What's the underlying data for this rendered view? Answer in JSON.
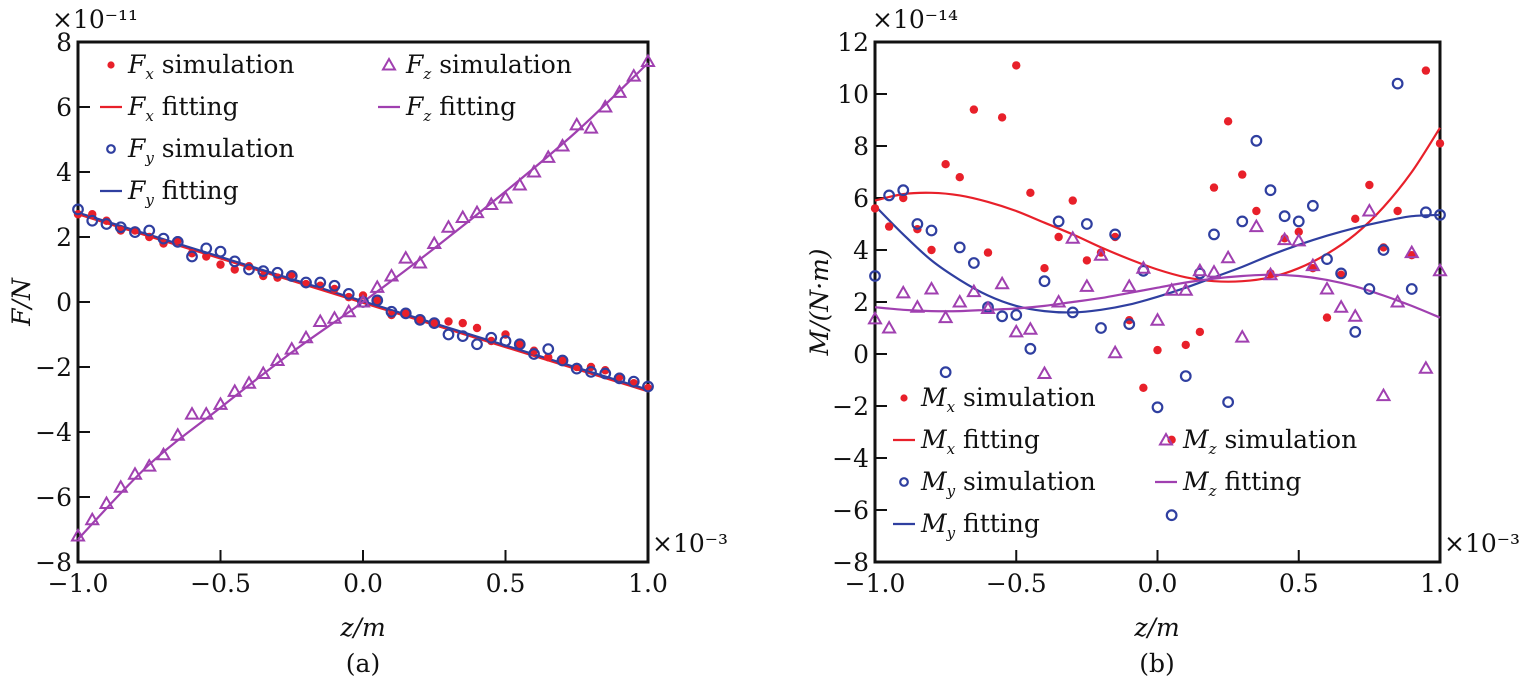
{
  "chart_data": [
    {
      "type": "scatter",
      "panel_label": "(a)",
      "title": "",
      "xlabel": "z/m",
      "ylabel": "F/N",
      "x_multiplier": "×10⁻³",
      "y_multiplier": "×10⁻¹¹",
      "xlim": [
        -1.0,
        1.0
      ],
      "ylim": [
        -8,
        8
      ],
      "x_ticks": [
        "−1.0",
        "−0.5",
        "0.0",
        "0.5",
        "1.0"
      ],
      "x_tick_values": [
        -1.0,
        -0.5,
        0.0,
        0.5,
        1.0
      ],
      "y_ticks": [
        "−8",
        "−6",
        "−4",
        "−2",
        "0",
        "2",
        "4",
        "6",
        "8"
      ],
      "y_tick_values": [
        -8,
        -6,
        -4,
        -2,
        0,
        2,
        4,
        6,
        8
      ],
      "grid": false,
      "legend_placement": "top-left",
      "legend": [
        {
          "label_main": "F",
          "label_sub": "x",
          "label_rest": " simulation",
          "kind": "dot",
          "color": "#e8202a"
        },
        {
          "label_main": "F",
          "label_sub": "x",
          "label_rest": " fitting",
          "kind": "line",
          "color": "#e8202a"
        },
        {
          "label_main": "F",
          "label_sub": "y",
          "label_rest": " simulation",
          "kind": "circle",
          "color": "#2f3fa0"
        },
        {
          "label_main": "F",
          "label_sub": "y",
          "label_rest": " fitting",
          "kind": "line",
          "color": "#2f3fa0"
        },
        {
          "label_main": "F",
          "label_sub": "z",
          "label_rest": " simulation",
          "kind": "triangle",
          "color": "#a040b0"
        },
        {
          "label_main": "F",
          "label_sub": "z",
          "label_rest": " fitting",
          "kind": "line",
          "color": "#a040b0"
        }
      ],
      "series": [
        {
          "name": "Fx simulation",
          "kind": "dot",
          "color": "#e8202a",
          "x": [
            -1.0,
            -0.95,
            -0.9,
            -0.85,
            -0.8,
            -0.75,
            -0.7,
            -0.65,
            -0.6,
            -0.55,
            -0.5,
            -0.45,
            -0.4,
            -0.35,
            -0.3,
            -0.25,
            -0.2,
            -0.15,
            -0.1,
            -0.05,
            0.0,
            0.05,
            0.1,
            0.15,
            0.2,
            0.25,
            0.3,
            0.35,
            0.4,
            0.45,
            0.5,
            0.55,
            0.6,
            0.65,
            0.7,
            0.75,
            0.8,
            0.85,
            0.9,
            0.95,
            1.0
          ],
          "y": [
            2.7,
            2.7,
            2.5,
            2.2,
            2.2,
            2.0,
            1.8,
            1.9,
            1.5,
            1.4,
            1.15,
            1.0,
            1.1,
            0.8,
            0.75,
            0.85,
            0.55,
            0.5,
            0.4,
            0.15,
            0.2,
            0.05,
            -0.4,
            -0.35,
            -0.55,
            -0.65,
            -0.6,
            -0.65,
            -0.8,
            -1.2,
            -1.0,
            -1.3,
            -1.5,
            -1.7,
            -1.8,
            -2.0,
            -2.0,
            -2.1,
            -2.3,
            -2.5,
            -2.65
          ]
        },
        {
          "name": "Fx fitting",
          "kind": "line",
          "color": "#e8202a",
          "x": [
            -1.0,
            1.0
          ],
          "y": [
            2.7,
            -2.75
          ]
        },
        {
          "name": "Fy simulation",
          "kind": "circle",
          "color": "#2f3fa0",
          "x": [
            -1.0,
            -0.95,
            -0.9,
            -0.85,
            -0.8,
            -0.75,
            -0.7,
            -0.65,
            -0.6,
            -0.55,
            -0.5,
            -0.45,
            -0.4,
            -0.35,
            -0.3,
            -0.25,
            -0.2,
            -0.15,
            -0.1,
            -0.05,
            0.0,
            0.05,
            0.1,
            0.15,
            0.2,
            0.25,
            0.3,
            0.35,
            0.4,
            0.45,
            0.5,
            0.55,
            0.6,
            0.65,
            0.7,
            0.75,
            0.8,
            0.85,
            0.9,
            0.95,
            1.0
          ],
          "y": [
            2.85,
            2.5,
            2.4,
            2.3,
            2.15,
            2.2,
            1.95,
            1.85,
            1.4,
            1.65,
            1.55,
            1.25,
            1.0,
            0.95,
            0.9,
            0.8,
            0.6,
            0.6,
            0.5,
            0.25,
            0.0,
            0.05,
            -0.3,
            -0.35,
            -0.55,
            -0.65,
            -1.0,
            -1.05,
            -1.3,
            -1.1,
            -1.2,
            -1.3,
            -1.6,
            -1.45,
            -1.8,
            -2.05,
            -2.15,
            -2.2,
            -2.35,
            -2.45,
            -2.6
          ]
        },
        {
          "name": "Fy fitting",
          "kind": "line",
          "color": "#2f3fa0",
          "x": [
            -1.0,
            1.0
          ],
          "y": [
            2.75,
            -2.7
          ]
        },
        {
          "name": "Fz simulation",
          "kind": "triangle",
          "color": "#a040b0",
          "x": [
            -1.0,
            -0.95,
            -0.9,
            -0.85,
            -0.8,
            -0.75,
            -0.7,
            -0.65,
            -0.6,
            -0.55,
            -0.5,
            -0.45,
            -0.4,
            -0.35,
            -0.3,
            -0.25,
            -0.2,
            -0.15,
            -0.1,
            -0.05,
            0.0,
            0.05,
            0.1,
            0.15,
            0.2,
            0.25,
            0.3,
            0.35,
            0.4,
            0.45,
            0.5,
            0.55,
            0.6,
            0.65,
            0.7,
            0.75,
            0.8,
            0.85,
            0.9,
            0.95,
            1.0
          ],
          "y": [
            -7.2,
            -6.7,
            -6.2,
            -5.7,
            -5.3,
            -5.05,
            -4.7,
            -4.1,
            -3.45,
            -3.45,
            -3.15,
            -2.75,
            -2.5,
            -2.2,
            -1.8,
            -1.45,
            -1.1,
            -0.6,
            -0.5,
            -0.3,
            0.0,
            0.45,
            0.8,
            1.35,
            1.2,
            1.8,
            2.3,
            2.6,
            2.75,
            3.0,
            3.2,
            3.6,
            4.0,
            4.45,
            4.8,
            5.45,
            5.35,
            6.0,
            6.45,
            6.95,
            7.4
          ]
        },
        {
          "name": "Fz fitting",
          "kind": "line",
          "color": "#a040b0",
          "x": [
            -1.0,
            -0.75,
            -0.5,
            -0.25,
            0.0,
            0.25,
            0.5,
            0.75,
            1.0
          ],
          "y": [
            -7.3,
            -5.0,
            -3.25,
            -1.55,
            0.0,
            1.65,
            3.4,
            5.25,
            7.35
          ]
        }
      ]
    },
    {
      "type": "scatter",
      "panel_label": "(b)",
      "title": "",
      "xlabel": "z/m",
      "ylabel": "M/(N·m)",
      "x_multiplier": "×10⁻³",
      "y_multiplier": "×10⁻¹⁴",
      "xlim": [
        -1.0,
        1.0
      ],
      "ylim": [
        -8,
        12
      ],
      "x_ticks": [
        "−1.0",
        "−0.5",
        "0.0",
        "0.5",
        "1.0"
      ],
      "x_tick_values": [
        -1.0,
        -0.5,
        0.0,
        0.5,
        1.0
      ],
      "y_ticks": [
        "−8",
        "−6",
        "−4",
        "−2",
        "0",
        "2",
        "4",
        "6",
        "8",
        "10",
        "12"
      ],
      "y_tick_values": [
        -8,
        -6,
        -4,
        -2,
        0,
        2,
        4,
        6,
        8,
        10,
        12
      ],
      "grid": false,
      "legend_placement": "bottom-left",
      "legend": [
        {
          "label_main": "M",
          "label_sub": "x",
          "label_rest": " simulation",
          "kind": "dot",
          "color": "#e8202a"
        },
        {
          "label_main": "M",
          "label_sub": "x",
          "label_rest": " fitting",
          "kind": "line",
          "color": "#e8202a"
        },
        {
          "label_main": "M",
          "label_sub": "y",
          "label_rest": " simulation",
          "kind": "circle",
          "color": "#2f3fa0"
        },
        {
          "label_main": "M",
          "label_sub": "y",
          "label_rest": " fitting",
          "kind": "line",
          "color": "#2f3fa0"
        },
        {
          "label_main": "M",
          "label_sub": "z",
          "label_rest": " simulation",
          "kind": "triangle",
          "color": "#a040b0"
        },
        {
          "label_main": "M",
          "label_sub": "z",
          "label_rest": " fitting",
          "kind": "line",
          "color": "#a040b0"
        }
      ],
      "series": [
        {
          "name": "Mx simulation",
          "kind": "dot",
          "color": "#e8202a",
          "x": [
            -1.0,
            -0.95,
            -0.9,
            -0.85,
            -0.8,
            -0.75,
            -0.7,
            -0.65,
            -0.6,
            -0.55,
            -0.5,
            -0.45,
            -0.4,
            -0.35,
            -0.3,
            -0.25,
            -0.2,
            -0.15,
            -0.1,
            -0.05,
            0.0,
            0.05,
            0.1,
            0.15,
            0.2,
            0.25,
            0.3,
            0.35,
            0.4,
            0.45,
            0.5,
            0.55,
            0.6,
            0.65,
            0.7,
            0.75,
            0.8,
            0.85,
            0.9,
            0.95,
            1.0
          ],
          "y": [
            5.6,
            4.9,
            6.0,
            4.8,
            4.0,
            7.3,
            6.8,
            9.4,
            3.9,
            9.1,
            11.1,
            6.2,
            3.3,
            4.5,
            5.9,
            3.6,
            3.9,
            4.5,
            1.3,
            -1.3,
            0.15,
            -3.3,
            0.35,
            0.85,
            6.4,
            8.95,
            6.9,
            5.5,
            3.1,
            4.45,
            4.7,
            3.3,
            1.4,
            3.05,
            5.2,
            6.5,
            4.1,
            5.5,
            3.8,
            10.9,
            8.1
          ]
        },
        {
          "name": "Mx fitting",
          "kind": "line",
          "color": "#e8202a",
          "x": [
            -1.0,
            -0.9,
            -0.8,
            -0.7,
            -0.6,
            -0.5,
            -0.4,
            -0.3,
            -0.2,
            -0.1,
            0.0,
            0.1,
            0.2,
            0.3,
            0.4,
            0.5,
            0.6,
            0.7,
            0.8,
            0.9,
            1.0
          ],
          "y": [
            5.9,
            6.15,
            6.2,
            6.1,
            5.85,
            5.5,
            5.05,
            4.6,
            4.1,
            3.65,
            3.25,
            2.95,
            2.8,
            2.8,
            2.95,
            3.3,
            3.85,
            4.6,
            5.65,
            7.0,
            8.7
          ]
        },
        {
          "name": "My simulation",
          "kind": "circle",
          "color": "#2f3fa0",
          "x": [
            -1.0,
            -0.95,
            -0.9,
            -0.85,
            -0.8,
            -0.75,
            -0.7,
            -0.65,
            -0.6,
            -0.55,
            -0.5,
            -0.45,
            -0.4,
            -0.35,
            -0.3,
            -0.25,
            -0.2,
            -0.15,
            -0.1,
            -0.05,
            0.0,
            0.05,
            0.1,
            0.15,
            0.2,
            0.25,
            0.3,
            0.35,
            0.4,
            0.45,
            0.5,
            0.55,
            0.6,
            0.65,
            0.7,
            0.75,
            0.8,
            0.85,
            0.9,
            0.95,
            1.0
          ],
          "y": [
            3.0,
            6.1,
            6.3,
            5.0,
            4.75,
            -0.7,
            4.1,
            3.5,
            1.8,
            1.45,
            1.5,
            0.2,
            2.8,
            5.1,
            1.6,
            5.0,
            1.0,
            4.6,
            1.15,
            3.2,
            -2.05,
            -6.2,
            -0.85,
            3.1,
            4.6,
            -1.85,
            5.1,
            8.2,
            6.3,
            5.3,
            5.1,
            5.7,
            3.65,
            3.1,
            0.85,
            2.5,
            4.0,
            10.4,
            2.5,
            5.45,
            5.35
          ]
        },
        {
          "name": "My fitting",
          "kind": "line",
          "color": "#2f3fa0",
          "x": [
            -1.0,
            -0.9,
            -0.8,
            -0.7,
            -0.6,
            -0.5,
            -0.4,
            -0.3,
            -0.2,
            -0.1,
            0.0,
            0.1,
            0.2,
            0.3,
            0.4,
            0.5,
            0.6,
            0.7,
            0.8,
            0.9,
            1.0
          ],
          "y": [
            5.7,
            4.6,
            3.6,
            2.85,
            2.25,
            1.85,
            1.65,
            1.6,
            1.7,
            1.9,
            2.2,
            2.55,
            2.95,
            3.35,
            3.8,
            4.2,
            4.55,
            4.85,
            5.1,
            5.3,
            5.35
          ]
        },
        {
          "name": "Mz simulation",
          "kind": "triangle",
          "color": "#a040b0",
          "x": [
            -1.0,
            -0.95,
            -0.9,
            -0.85,
            -0.8,
            -0.75,
            -0.7,
            -0.65,
            -0.6,
            -0.55,
            -0.5,
            -0.45,
            -0.4,
            -0.35,
            -0.3,
            -0.25,
            -0.2,
            -0.15,
            -0.1,
            -0.05,
            0.0,
            0.05,
            0.1,
            0.15,
            0.2,
            0.25,
            0.3,
            0.35,
            0.4,
            0.45,
            0.5,
            0.55,
            0.6,
            0.65,
            0.7,
            0.75,
            0.8,
            0.85,
            0.9,
            0.95,
            1.0
          ],
          "y": [
            1.35,
            1.0,
            2.35,
            1.8,
            2.5,
            1.4,
            2.0,
            2.4,
            1.75,
            2.7,
            0.85,
            0.95,
            -0.75,
            2.0,
            4.45,
            2.6,
            3.8,
            0.05,
            2.6,
            3.3,
            1.3,
            2.45,
            2.45,
            3.2,
            3.15,
            3.7,
            0.65,
            4.9,
            3.05,
            4.4,
            4.35,
            3.4,
            2.5,
            1.8,
            1.45,
            5.5,
            -1.6,
            2.0,
            3.9,
            -0.55,
            3.2
          ]
        },
        {
          "name": "Mz fitting",
          "kind": "line",
          "color": "#a040b0",
          "x": [
            -1.0,
            -0.9,
            -0.8,
            -0.7,
            -0.6,
            -0.5,
            -0.4,
            -0.3,
            -0.2,
            -0.1,
            0.0,
            0.1,
            0.2,
            0.3,
            0.4,
            0.5,
            0.6,
            0.7,
            0.8,
            0.9,
            1.0
          ],
          "y": [
            1.8,
            1.7,
            1.65,
            1.65,
            1.7,
            1.75,
            1.85,
            2.0,
            2.15,
            2.35,
            2.55,
            2.75,
            2.9,
            3.0,
            3.05,
            3.0,
            2.85,
            2.6,
            2.25,
            1.85,
            1.4
          ]
        }
      ]
    }
  ]
}
